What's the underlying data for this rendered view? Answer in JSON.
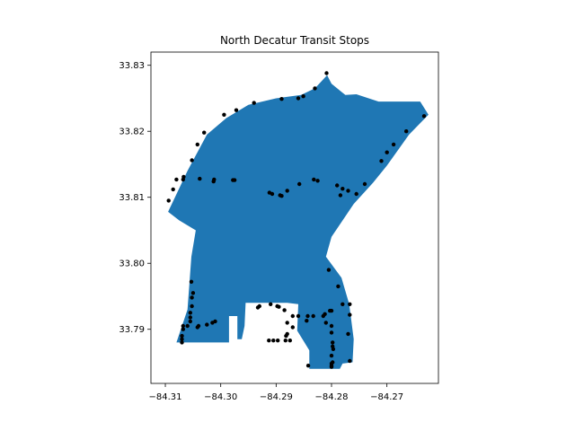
{
  "chart_data": {
    "type": "scatter",
    "title": "North Decatur Transit Stops",
    "xlabel": "",
    "ylabel": "",
    "xlim": [
      -84.3126,
      -84.2607
    ],
    "ylim": [
      33.7818,
      33.832
    ],
    "x_ticks": [
      -84.31,
      -84.3,
      -84.29,
      -84.28,
      -84.27
    ],
    "x_tick_labels": [
      "−84.31",
      "−84.30",
      "−84.29",
      "−84.28",
      "−84.27"
    ],
    "y_ticks": [
      33.79,
      33.8,
      33.81,
      33.82,
      33.83
    ],
    "y_tick_labels": [
      "33.79",
      "33.80",
      "33.81",
      "33.82",
      "33.83"
    ],
    "grid": false,
    "region_color": "#1f77b4",
    "stop_color": "#000000",
    "region_boundary": [
      [
        -84.3095,
        33.8078
      ],
      [
        -84.306,
        33.814
      ],
      [
        -84.3025,
        33.8195
      ],
      [
        -84.299,
        33.822
      ],
      [
        -84.295,
        33.824
      ],
      [
        -84.29,
        33.825
      ],
      [
        -84.2855,
        33.8255
      ],
      [
        -84.283,
        33.8265
      ],
      [
        -84.2808,
        33.8285
      ],
      [
        -84.28,
        33.8272
      ],
      [
        -84.2775,
        33.8255
      ],
      [
        -84.2755,
        33.8256
      ],
      [
        -84.2715,
        33.8245
      ],
      [
        -84.264,
        33.8245
      ],
      [
        -84.2625,
        33.8225
      ],
      [
        -84.266,
        33.8195
      ],
      [
        -84.27,
        33.8148
      ],
      [
        -84.2725,
        33.8122
      ],
      [
        -84.276,
        33.809
      ],
      [
        -84.28,
        33.804
      ],
      [
        -84.281,
        33.801
      ],
      [
        -84.2782,
        33.7978
      ],
      [
        -84.2768,
        33.7938
      ],
      [
        -84.276,
        33.7885
      ],
      [
        -84.2762,
        33.785
      ],
      [
        -84.278,
        33.7848
      ],
      [
        -84.2785,
        33.784
      ],
      [
        -84.284,
        33.784
      ],
      [
        -84.284,
        33.7868
      ],
      [
        -84.2862,
        33.7898
      ],
      [
        -84.286,
        33.7938
      ],
      [
        -84.288,
        33.794
      ],
      [
        -84.2955,
        33.794
      ],
      [
        -84.2957,
        33.7905
      ],
      [
        -84.2962,
        33.7885
      ],
      [
        -84.297,
        33.7885
      ],
      [
        -84.297,
        33.792
      ],
      [
        -84.2985,
        33.792
      ],
      [
        -84.2985,
        33.788
      ],
      [
        -84.308,
        33.788
      ],
      [
        -84.306,
        33.793
      ],
      [
        -84.3053,
        33.801
      ],
      [
        -84.3045,
        33.805
      ],
      [
        -84.3075,
        33.8065
      ]
    ],
    "stops": [
      [
        -84.2809,
        33.8288
      ],
      [
        -84.283,
        33.8265
      ],
      [
        -84.2851,
        33.8253
      ],
      [
        -84.286,
        33.825
      ],
      [
        -84.289,
        33.8249
      ],
      [
        -84.294,
        33.8243
      ],
      [
        -84.2972,
        33.8232
      ],
      [
        -84.2994,
        33.8225
      ],
      [
        -84.303,
        33.8198
      ],
      [
        -84.3042,
        33.818
      ],
      [
        -84.3052,
        33.8156
      ],
      [
        -84.3067,
        33.8131
      ],
      [
        -84.3068,
        33.8127
      ],
      [
        -84.308,
        33.8127
      ],
      [
        -84.3086,
        33.8112
      ],
      [
        -84.3094,
        33.8095
      ],
      [
        -84.3038,
        33.8128
      ],
      [
        -84.3012,
        33.8127
      ],
      [
        -84.3013,
        33.8124
      ],
      [
        -84.2978,
        33.8126
      ],
      [
        -84.2975,
        33.8126
      ],
      [
        -84.2912,
        33.8107
      ],
      [
        -84.2907,
        33.8105
      ],
      [
        -84.2893,
        33.8103
      ],
      [
        -84.289,
        33.8102
      ],
      [
        -84.288,
        33.811
      ],
      [
        -84.2858,
        33.812
      ],
      [
        -84.2832,
        33.8127
      ],
      [
        -84.2825,
        33.8125
      ],
      [
        -84.279,
        33.8118
      ],
      [
        -84.278,
        33.8113
      ],
      [
        -84.2784,
        33.8103
      ],
      [
        -84.277,
        33.811
      ],
      [
        -84.2755,
        33.8105
      ],
      [
        -84.274,
        33.812
      ],
      [
        -84.271,
        33.8155
      ],
      [
        -84.27,
        33.8168
      ],
      [
        -84.2688,
        33.818
      ],
      [
        -84.2665,
        33.82
      ],
      [
        -84.2633,
        33.8223
      ],
      [
        -84.2805,
        33.799
      ],
      [
        -84.2788,
        33.7965
      ],
      [
        -84.278,
        33.7938
      ],
      [
        -84.2767,
        33.7938
      ],
      [
        -84.2767,
        33.7922
      ],
      [
        -84.2803,
        33.7928
      ],
      [
        -84.28,
        33.7928
      ],
      [
        -84.2812,
        33.7923
      ],
      [
        -84.2815,
        33.792
      ],
      [
        -84.281,
        33.791
      ],
      [
        -84.28,
        33.7905
      ],
      [
        -84.28,
        33.7895
      ],
      [
        -84.2798,
        33.788
      ],
      [
        -84.2798,
        33.7874
      ],
      [
        -84.2797,
        33.787
      ],
      [
        -84.28,
        33.786
      ],
      [
        -84.2798,
        33.785
      ],
      [
        -84.28,
        33.7848
      ],
      [
        -84.2767,
        33.7852
      ],
      [
        -84.277,
        33.7893
      ],
      [
        -84.2833,
        33.792
      ],
      [
        -84.2845,
        33.7913
      ],
      [
        -84.2843,
        33.792
      ],
      [
        -84.286,
        33.792
      ],
      [
        -84.287,
        33.792
      ],
      [
        -84.288,
        33.791
      ],
      [
        -84.287,
        33.7903
      ],
      [
        -84.288,
        33.7893
      ],
      [
        -84.2882,
        33.789
      ],
      [
        -84.2875,
        33.7883
      ],
      [
        -84.2883,
        33.7883
      ],
      [
        -84.2885,
        33.7929
      ],
      [
        -84.2895,
        33.7934
      ],
      [
        -84.2898,
        33.7935
      ],
      [
        -84.291,
        33.7938
      ],
      [
        -84.293,
        33.7935
      ],
      [
        -84.2933,
        33.7933
      ],
      [
        -84.2913,
        33.7883
      ],
      [
        -84.2905,
        33.7883
      ],
      [
        -84.2897,
        33.7883
      ],
      [
        -84.2842,
        33.7845
      ],
      [
        -84.28,
        33.7845
      ],
      [
        -84.28,
        33.7843
      ],
      [
        -84.3053,
        33.7972
      ],
      [
        -84.305,
        33.7955
      ],
      [
        -84.3052,
        33.7948
      ],
      [
        -84.3052,
        33.7935
      ],
      [
        -84.3055,
        33.7925
      ],
      [
        -84.3055,
        33.7918
      ],
      [
        -84.3055,
        33.7912
      ],
      [
        -84.306,
        33.7905
      ],
      [
        -84.3068,
        33.7905
      ],
      [
        -84.3068,
        33.79
      ],
      [
        -84.307,
        33.789
      ],
      [
        -84.307,
        33.7885
      ],
      [
        -84.307,
        33.788
      ],
      [
        -84.3042,
        33.7903
      ],
      [
        -84.304,
        33.7905
      ],
      [
        -84.3025,
        33.7907
      ],
      [
        -84.3015,
        33.791
      ],
      [
        -84.301,
        33.7912
      ]
    ]
  }
}
